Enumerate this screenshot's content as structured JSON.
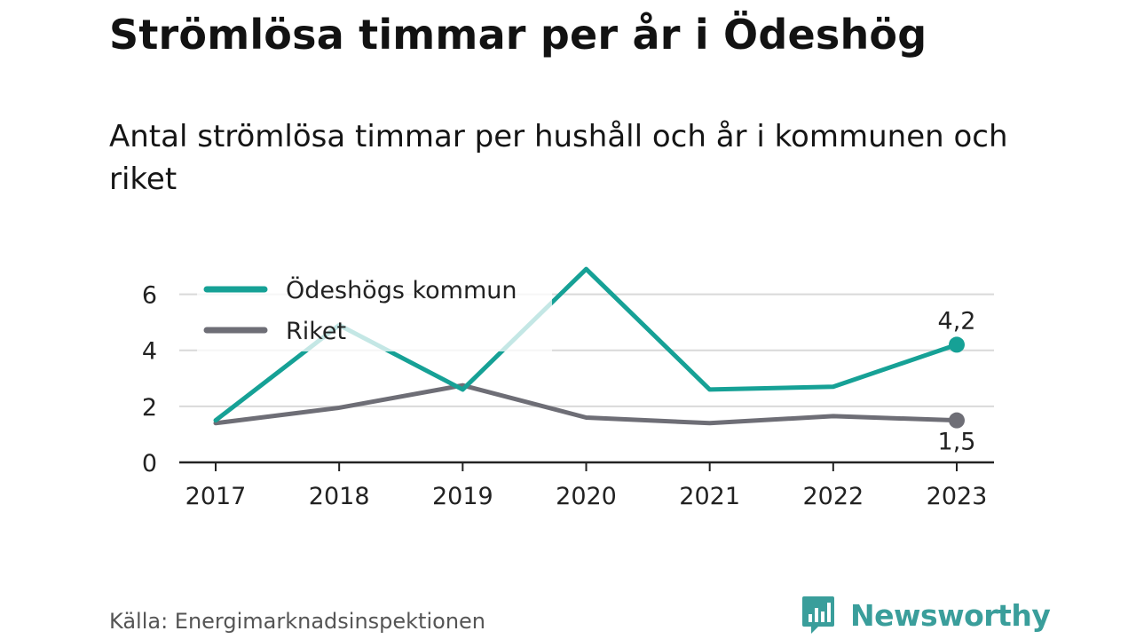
{
  "header": {
    "title": "Strömlösa timmar per år i Ödeshög",
    "subtitle": "Antal strömlösa timmar per hushåll och år i kommunen och riket"
  },
  "footer": {
    "source": "Källa: Energimarknadsinspektionen",
    "brand": "Newsworthy",
    "brand_icon": "newsworthy-logo-icon",
    "brand_color": "#3a9e9b"
  },
  "chart_data": {
    "type": "line",
    "x": [
      "2017",
      "2018",
      "2019",
      "2020",
      "2021",
      "2022",
      "2023"
    ],
    "ylim": [
      0,
      7
    ],
    "yticks": [
      "0",
      "2",
      "4",
      "6"
    ],
    "grid": true,
    "legend_position": "top-left",
    "series": [
      {
        "name": "Ödeshögs kommun",
        "color": "#16a196",
        "values": [
          1.5,
          4.9,
          2.6,
          6.9,
          2.6,
          2.7,
          4.2
        ],
        "end_label": "4,2"
      },
      {
        "name": "Riket",
        "color": "#6e6e76",
        "values": [
          1.4,
          1.95,
          2.75,
          1.6,
          1.4,
          1.65,
          1.5
        ],
        "end_label": "1,5"
      }
    ]
  }
}
